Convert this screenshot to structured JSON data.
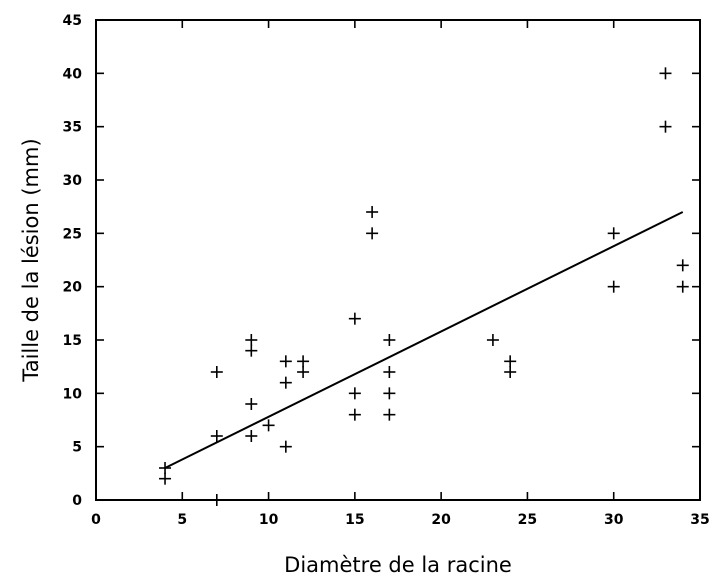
{
  "chart_data": {
    "type": "scatter",
    "title": "",
    "xlabel": "Diamètre de la racine",
    "ylabel": "Taille de la lésion (mm)",
    "xlim": [
      0,
      35
    ],
    "ylim": [
      0,
      45
    ],
    "xticks": [
      0,
      5,
      10,
      15,
      20,
      25,
      30,
      35
    ],
    "yticks": [
      0,
      5,
      10,
      15,
      20,
      25,
      30,
      35,
      40,
      45
    ],
    "grid": false,
    "legend": "none",
    "marker": "plus",
    "points": [
      {
        "x": 4,
        "y": 3
      },
      {
        "x": 4,
        "y": 2
      },
      {
        "x": 7,
        "y": 12
      },
      {
        "x": 7,
        "y": 6
      },
      {
        "x": 7,
        "y": 0
      },
      {
        "x": 9,
        "y": 15
      },
      {
        "x": 9,
        "y": 14
      },
      {
        "x": 9,
        "y": 9
      },
      {
        "x": 9,
        "y": 6
      },
      {
        "x": 10,
        "y": 7
      },
      {
        "x": 11,
        "y": 13
      },
      {
        "x": 11,
        "y": 11
      },
      {
        "x": 11,
        "y": 5
      },
      {
        "x": 12,
        "y": 13
      },
      {
        "x": 12,
        "y": 12
      },
      {
        "x": 15,
        "y": 17
      },
      {
        "x": 15,
        "y": 10
      },
      {
        "x": 15,
        "y": 8
      },
      {
        "x": 16,
        "y": 27
      },
      {
        "x": 16,
        "y": 25
      },
      {
        "x": 17,
        "y": 15
      },
      {
        "x": 17,
        "y": 12
      },
      {
        "x": 17,
        "y": 10
      },
      {
        "x": 17,
        "y": 8
      },
      {
        "x": 23,
        "y": 15
      },
      {
        "x": 24,
        "y": 13
      },
      {
        "x": 24,
        "y": 12
      },
      {
        "x": 30,
        "y": 25
      },
      {
        "x": 30,
        "y": 20
      },
      {
        "x": 33,
        "y": 40
      },
      {
        "x": 33,
        "y": 35
      },
      {
        "x": 34,
        "y": 22
      },
      {
        "x": 34,
        "y": 20
      }
    ],
    "regression_line": {
      "x": [
        4,
        34
      ],
      "y": [
        3,
        27
      ]
    }
  }
}
